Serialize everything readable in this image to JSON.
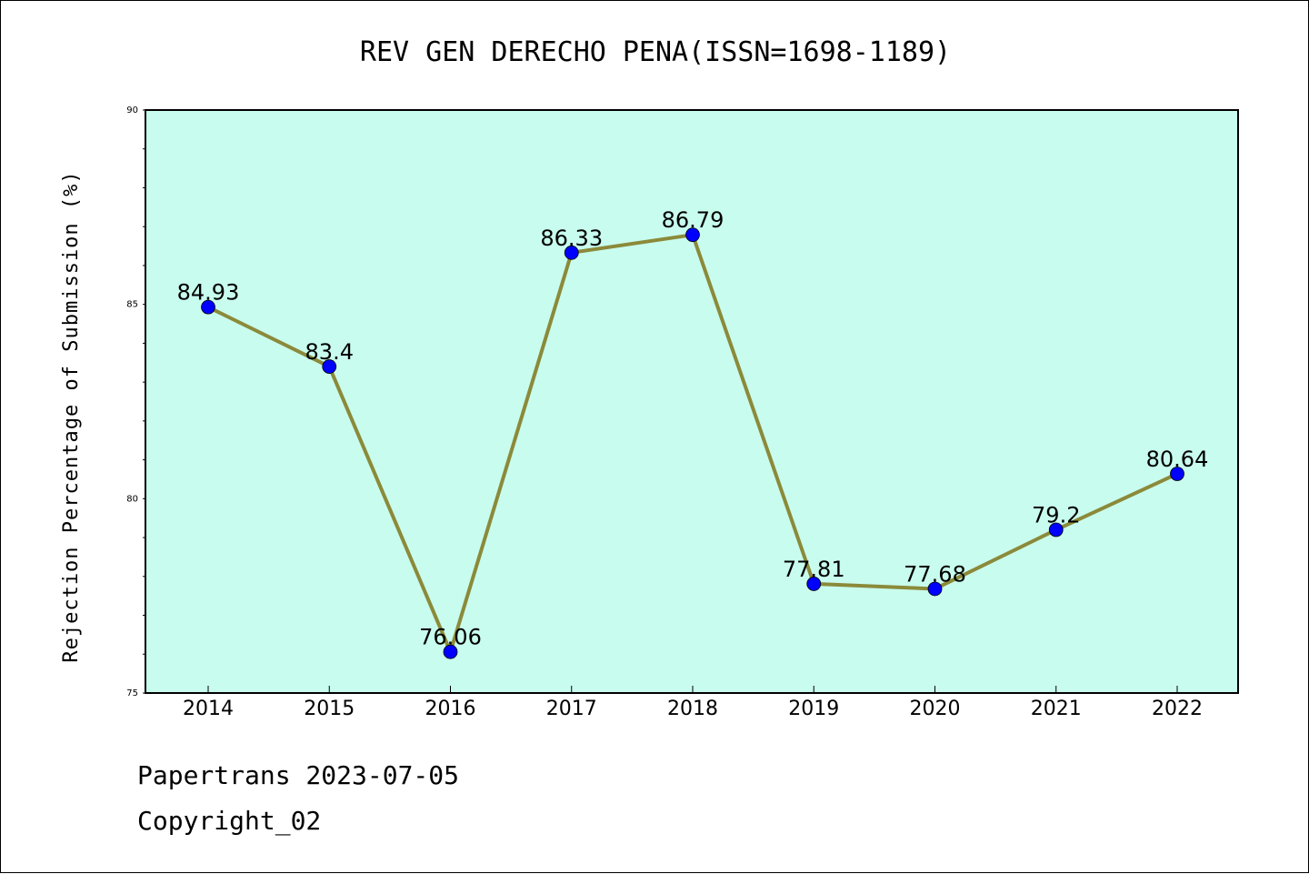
{
  "chart_data": {
    "type": "line",
    "title": "REV GEN DERECHO PENA(ISSN=1698-1189)",
    "xlabel": "",
    "ylabel": "Rejection Percentage of Submission (%)",
    "categories": [
      "2014",
      "2015",
      "2016",
      "2017",
      "2018",
      "2019",
      "2020",
      "2021",
      "2022"
    ],
    "series": [
      {
        "values": [
          84.93,
          83.4,
          76.06,
          86.33,
          86.79,
          77.81,
          77.68,
          79.2,
          80.64
        ],
        "labels": [
          "84.93",
          "83.4",
          "76.06",
          "86.33",
          "86.79",
          "77.81",
          "77.68",
          "79.2",
          "80.64"
        ]
      }
    ],
    "ylim": [
      75,
      90
    ],
    "yticks": [
      "75",
      "80",
      "85",
      "90"
    ],
    "grid": false,
    "legend": "none",
    "colors": {
      "plot_background": "#c8fcee",
      "line": "#8b8a3a",
      "marker": "#0000ff"
    }
  },
  "footer": {
    "line1": "Papertrans 2023-07-05",
    "line2": "Copyright_02"
  }
}
